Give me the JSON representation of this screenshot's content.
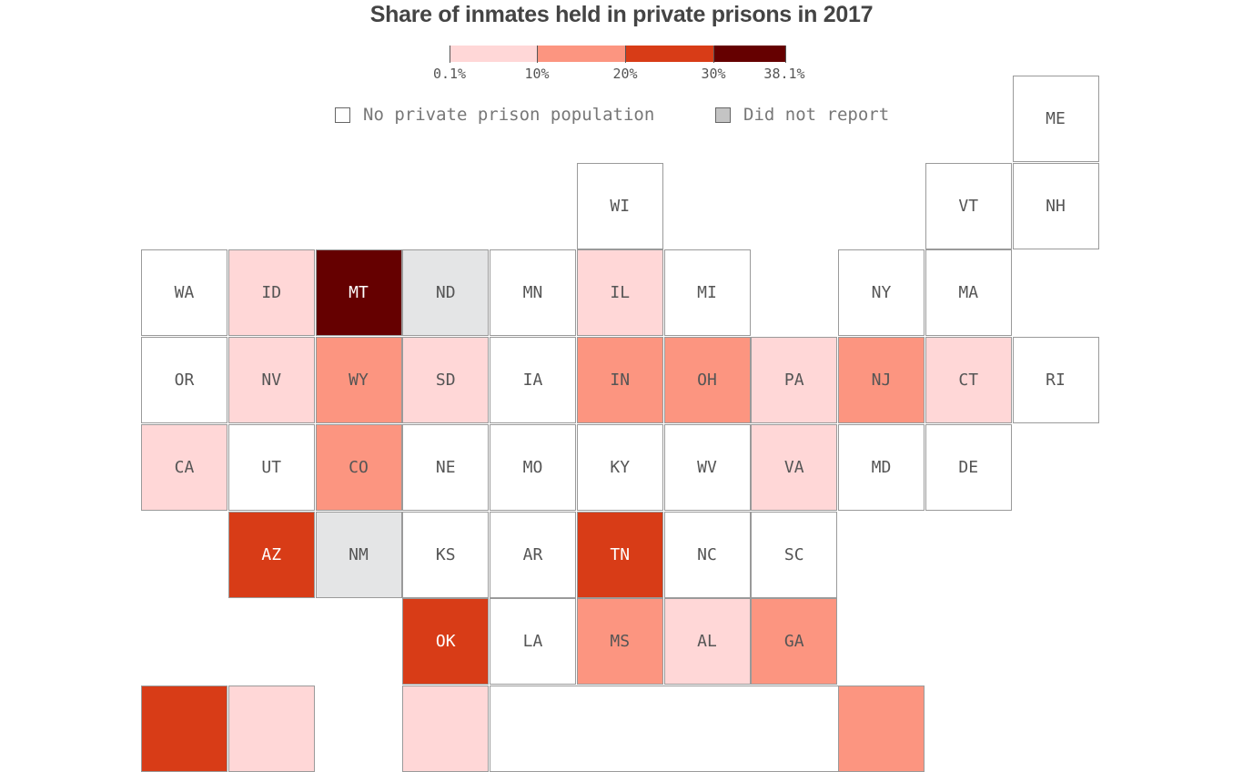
{
  "chart_data": {
    "type": "tile-map",
    "title": "Share of inmates held in private prisons in 2017",
    "legend": {
      "bins": [
        {
          "key": "b1",
          "range": [
            0.1,
            10
          ],
          "color": "#ffd7d7"
        },
        {
          "key": "b2",
          "range": [
            10,
            20
          ],
          "color": "#fc9580"
        },
        {
          "key": "b3",
          "range": [
            20,
            30
          ],
          "color": "#d83c17"
        },
        {
          "key": "b4",
          "range": [
            30,
            38.1
          ],
          "color": "#650000"
        }
      ],
      "tick_labels": [
        "0.1%",
        "10%",
        "20%",
        "30%",
        "38.1%"
      ],
      "none_label": "No private prison population",
      "none_color": "#ffffff",
      "nr_label": "Did not report",
      "nr_color": "#e4e5e6",
      "nr_swatch_color": "#c4c4c4"
    },
    "tiles": [
      {
        "label": "ME",
        "bin": "none"
      },
      {
        "label": "WI",
        "bin": "none"
      },
      {
        "label": "VT",
        "bin": "none"
      },
      {
        "label": "NH",
        "bin": "none"
      },
      {
        "label": "WA",
        "bin": "none"
      },
      {
        "label": "ID",
        "bin": "b1"
      },
      {
        "label": "MT",
        "bin": "b4"
      },
      {
        "label": "ND",
        "bin": "nr"
      },
      {
        "label": "MN",
        "bin": "none"
      },
      {
        "label": "IL",
        "bin": "b1"
      },
      {
        "label": "MI",
        "bin": "none"
      },
      {
        "label": "NY",
        "bin": "none"
      },
      {
        "label": "MA",
        "bin": "none"
      },
      {
        "label": "OR",
        "bin": "none"
      },
      {
        "label": "NV",
        "bin": "b1"
      },
      {
        "label": "WY",
        "bin": "b2"
      },
      {
        "label": "SD",
        "bin": "b1"
      },
      {
        "label": "IA",
        "bin": "none"
      },
      {
        "label": "IN",
        "bin": "b2"
      },
      {
        "label": "OH",
        "bin": "b2"
      },
      {
        "label": "PA",
        "bin": "b1"
      },
      {
        "label": "NJ",
        "bin": "b2"
      },
      {
        "label": "CT",
        "bin": "b1"
      },
      {
        "label": "RI",
        "bin": "none"
      },
      {
        "label": "CA",
        "bin": "b1"
      },
      {
        "label": "UT",
        "bin": "none"
      },
      {
        "label": "CO",
        "bin": "b2"
      },
      {
        "label": "NE",
        "bin": "none"
      },
      {
        "label": "MO",
        "bin": "none"
      },
      {
        "label": "KY",
        "bin": "none"
      },
      {
        "label": "WV",
        "bin": "none"
      },
      {
        "label": "VA",
        "bin": "b1"
      },
      {
        "label": "MD",
        "bin": "none"
      },
      {
        "label": "DE",
        "bin": "none"
      },
      {
        "label": "AZ",
        "bin": "b3"
      },
      {
        "label": "NM",
        "bin": "nr"
      },
      {
        "label": "KS",
        "bin": "none"
      },
      {
        "label": "AR",
        "bin": "none"
      },
      {
        "label": "TN",
        "bin": "b3"
      },
      {
        "label": "NC",
        "bin": "none"
      },
      {
        "label": "SC",
        "bin": "none"
      },
      {
        "label": "OK",
        "bin": "b3"
      },
      {
        "label": "LA",
        "bin": "none"
      },
      {
        "label": "MS",
        "bin": "b2"
      },
      {
        "label": "AL",
        "bin": "b1"
      },
      {
        "label": "GA",
        "bin": "b2"
      },
      {
        "label": "",
        "bin": "b3"
      },
      {
        "label": "",
        "bin": "b1"
      },
      {
        "label": "",
        "bin": "b1"
      },
      {
        "label": "",
        "bin": "none"
      },
      {
        "label": "",
        "bin": "b2"
      }
    ]
  }
}
